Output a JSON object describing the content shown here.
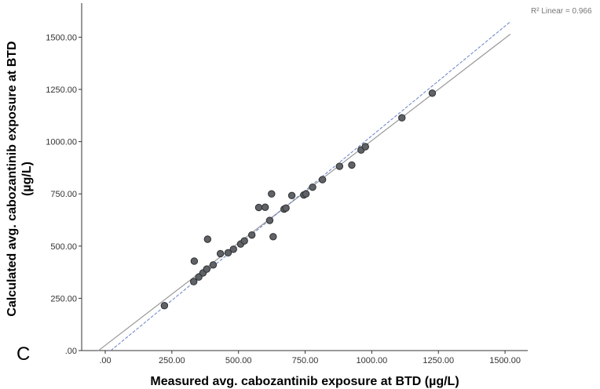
{
  "chart_data": {
    "type": "scatter",
    "panel_label": "C",
    "xlabel": "Measured avg. cabozantinib exposure at BTD (µg/L)",
    "ylabel_lines": [
      "Calculated avg. cabozantinib exposure at BTD",
      "(µg/L)"
    ],
    "r2_label": "R² Linear = 0.966",
    "xlim": [
      -90,
      1520
    ],
    "ylim": [
      0,
      1640
    ],
    "x_ticks": [
      {
        "value": 0,
        "label": ".00"
      },
      {
        "value": 250,
        "label": "250.00"
      },
      {
        "value": 500,
        "label": "500.00"
      },
      {
        "value": 750,
        "label": "750.00"
      },
      {
        "value": 1000,
        "label": "1000.00"
      },
      {
        "value": 1250,
        "label": "1250.00"
      },
      {
        "value": 1500,
        "label": "1500.00"
      }
    ],
    "y_ticks": [
      {
        "value": 0,
        "label": ".00"
      },
      {
        "value": 250,
        "label": "250.00"
      },
      {
        "value": 500,
        "label": "500.00"
      },
      {
        "value": 750,
        "label": "750.00"
      },
      {
        "value": 1000,
        "label": "1000.00"
      },
      {
        "value": 1250,
        "label": "1250.00"
      },
      {
        "value": 1500,
        "label": "1500.00"
      }
    ],
    "grid": false,
    "points": [
      {
        "x": 222,
        "y": 215
      },
      {
        "x": 332,
        "y": 330
      },
      {
        "x": 334,
        "y": 428
      },
      {
        "x": 351,
        "y": 352
      },
      {
        "x": 367,
        "y": 372
      },
      {
        "x": 381,
        "y": 390
      },
      {
        "x": 384,
        "y": 533
      },
      {
        "x": 405,
        "y": 410
      },
      {
        "x": 432,
        "y": 464
      },
      {
        "x": 461,
        "y": 468
      },
      {
        "x": 481,
        "y": 485
      },
      {
        "x": 508,
        "y": 510
      },
      {
        "x": 522,
        "y": 525
      },
      {
        "x": 550,
        "y": 553
      },
      {
        "x": 576,
        "y": 685
      },
      {
        "x": 600,
        "y": 686
      },
      {
        "x": 617,
        "y": 623
      },
      {
        "x": 624,
        "y": 750
      },
      {
        "x": 630,
        "y": 545
      },
      {
        "x": 671,
        "y": 677
      },
      {
        "x": 678,
        "y": 682
      },
      {
        "x": 700,
        "y": 742
      },
      {
        "x": 745,
        "y": 745
      },
      {
        "x": 753,
        "y": 750
      },
      {
        "x": 778,
        "y": 782
      },
      {
        "x": 815,
        "y": 818
      },
      {
        "x": 879,
        "y": 882
      },
      {
        "x": 925,
        "y": 888
      },
      {
        "x": 960,
        "y": 960
      },
      {
        "x": 976,
        "y": 976
      },
      {
        "x": 1113,
        "y": 1114
      },
      {
        "x": 1227,
        "y": 1232
      }
    ],
    "reference_line": {
      "slope": 0.98,
      "intercept": 25,
      "color": "#999999",
      "style": "solid"
    },
    "fit_line": {
      "slope": 1.05,
      "intercept": -22,
      "color": "#6680c8",
      "style": "dashed"
    },
    "point_color": "#5f6368",
    "point_stroke": "#2e2e2e"
  }
}
